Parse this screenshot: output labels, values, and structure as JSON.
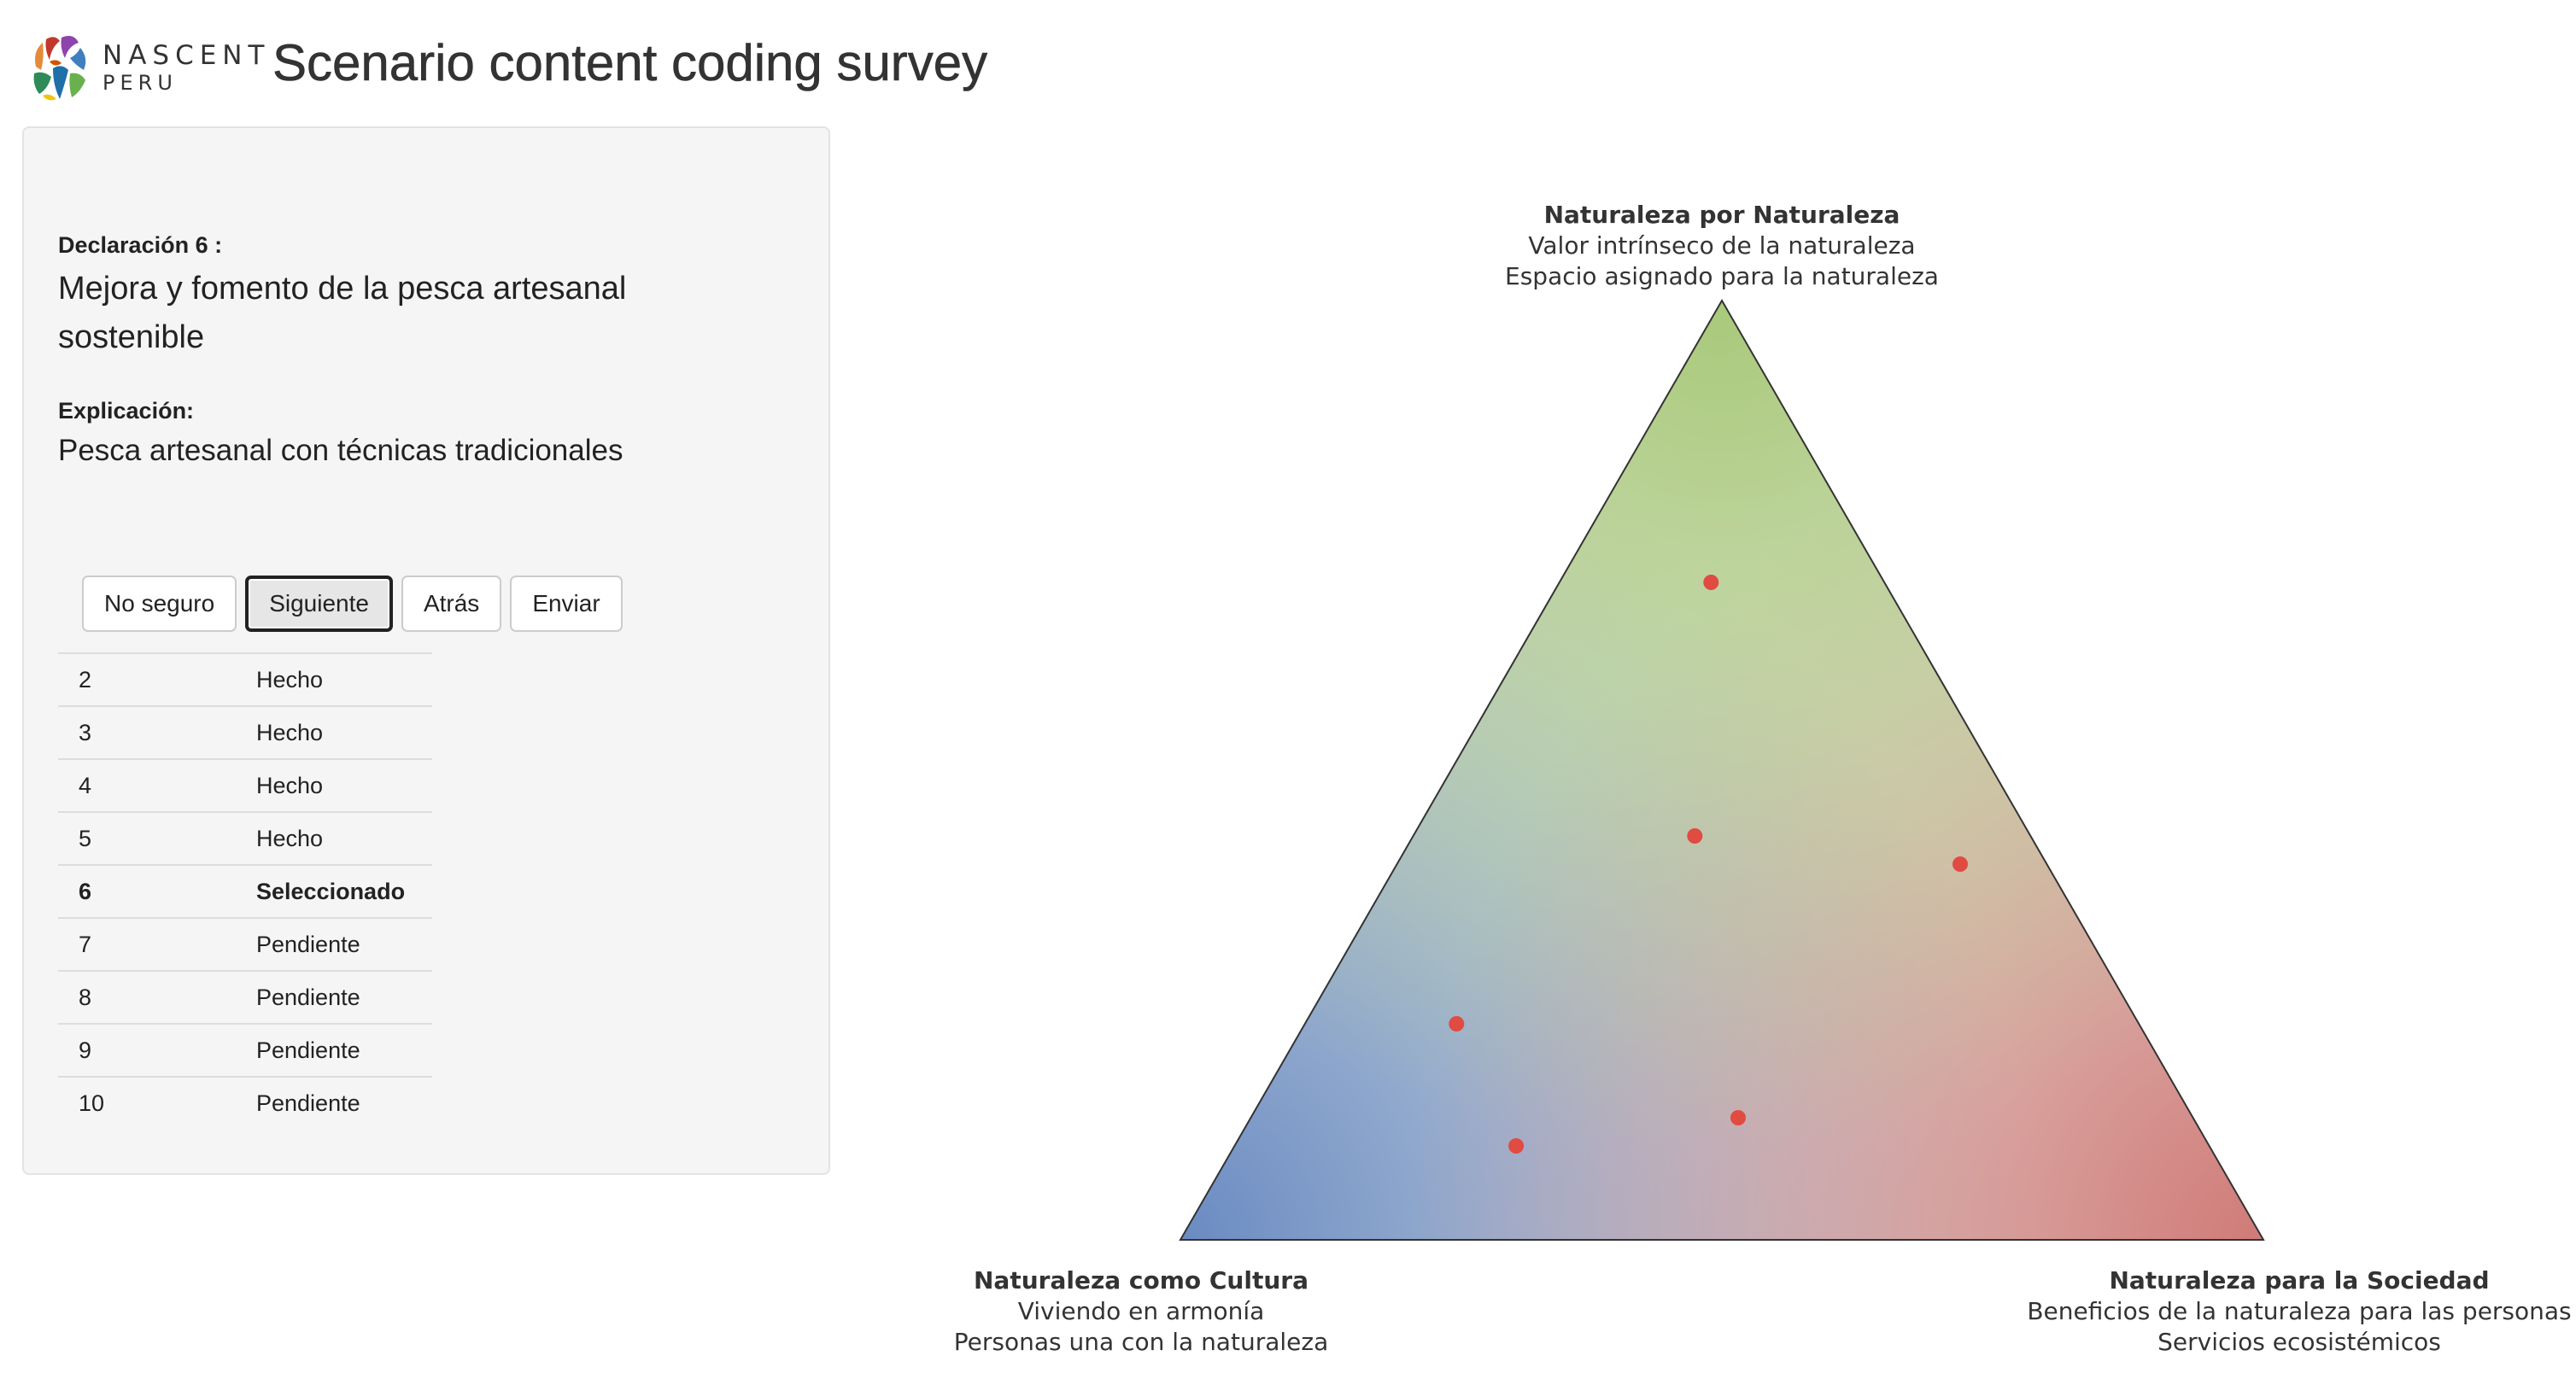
{
  "header": {
    "logo_name": "NASCENT",
    "logo_sub": "PERU",
    "title": "Scenario content coding survey"
  },
  "statement": {
    "label": "Declaración 6 :",
    "text": "Mejora y fomento de la pesca artesanal sostenible",
    "explanation_label": "Explicación:",
    "explanation": "Pesca artesanal con técnicas tradicionales"
  },
  "buttons": {
    "unsure": "No seguro",
    "next": "Siguiente",
    "back": "Atrás",
    "submit": "Enviar"
  },
  "status_rows": [
    {
      "num": "2",
      "status": "Hecho"
    },
    {
      "num": "3",
      "status": "Hecho"
    },
    {
      "num": "4",
      "status": "Hecho"
    },
    {
      "num": "5",
      "status": "Hecho"
    },
    {
      "num": "6",
      "status": "Seleccionado"
    },
    {
      "num": "7",
      "status": "Pendiente"
    },
    {
      "num": "8",
      "status": "Pendiente"
    },
    {
      "num": "9",
      "status": "Pendiente"
    },
    {
      "num": "10",
      "status": "Pendiente"
    }
  ],
  "triangle": {
    "top": {
      "title": "Naturaleza por Naturaleza",
      "line1": "Valor intrínseco de la naturaleza",
      "line2": "Espacio asignado para la naturaleza",
      "color": "#a9c97a"
    },
    "left": {
      "title": "Naturaleza como Cultura",
      "line1": "Viviendo en armonía",
      "line2": "Personas una con la naturaleza",
      "color": "#6a8bc2"
    },
    "right": {
      "title": "Naturaleza para la Sociedad",
      "line1": "Beneficios de la naturaleza para las personas",
      "line2": "Servicios ecosistémicos",
      "color": "#d07b78"
    },
    "point_color": "#e04b42",
    "points": [
      {
        "nature": 0.7,
        "culture": 0.16,
        "society": 0.14
      },
      {
        "nature": 0.43,
        "culture": 0.31,
        "society": 0.26
      },
      {
        "nature": 0.4,
        "culture": 0.08,
        "society": 0.52
      },
      {
        "nature": 0.23,
        "culture": 0.63,
        "society": 0.14
      },
      {
        "nature": 0.13,
        "culture": 0.42,
        "society": 0.45
      },
      {
        "nature": 0.1,
        "culture": 0.64,
        "society": 0.26
      }
    ]
  }
}
